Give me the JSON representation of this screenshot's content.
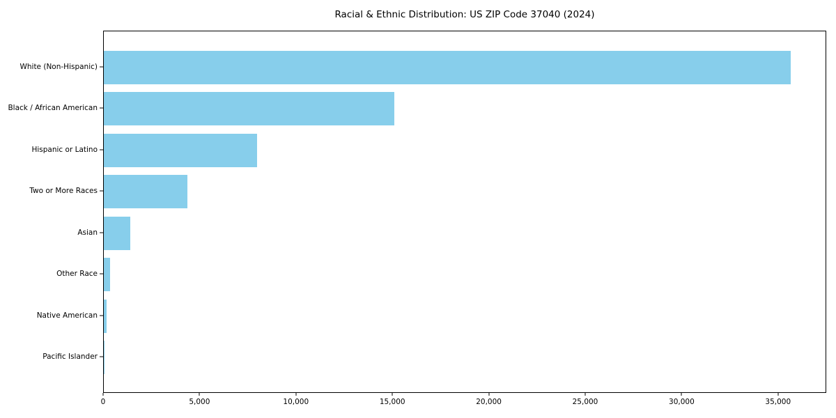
{
  "chart_data": {
    "type": "bar",
    "orientation": "horizontal",
    "title": "Racial & Ethnic Distribution: US ZIP Code 37040 (2024)",
    "categories": [
      "White (Non-Hispanic)",
      "Black / African American",
      "Hispanic or Latino",
      "Two or More Races",
      "Asian",
      "Other Race",
      "Native American",
      "Pacific Islander"
    ],
    "values": [
      35700,
      15100,
      7950,
      4350,
      1380,
      330,
      130,
      40
    ],
    "xlabel": "",
    "ylabel": "",
    "xlim": [
      0,
      37500
    ],
    "x_ticks": [
      0,
      5000,
      10000,
      15000,
      20000,
      25000,
      30000,
      35000
    ],
    "x_tick_labels": [
      "0",
      "5,000",
      "10,000",
      "15,000",
      "20,000",
      "25,000",
      "30,000",
      "35,000"
    ],
    "bar_color": "#87CEEB",
    "axis_color": "#000000",
    "grid": false,
    "legend": null
  }
}
